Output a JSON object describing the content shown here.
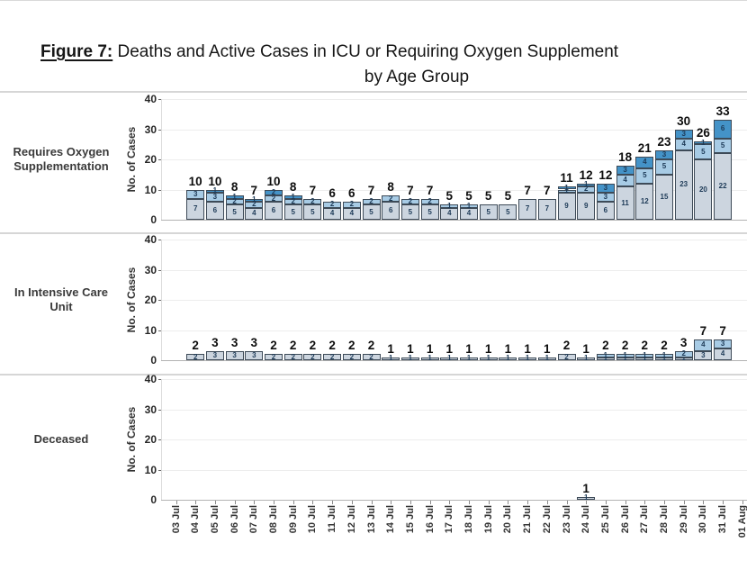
{
  "figure": {
    "label": "Figure 7:",
    "title_rest": " Deaths and Active Cases in ICU or Requiring Oxygen Supplement",
    "subtitle": "by Age Group"
  },
  "chart_data": {
    "type": "bar",
    "stacked": true,
    "title": "Figure 7: Deaths and Active Cases in ICU or Requiring Oxygen Supplement by Age Group",
    "ylabel": "No. of Cases",
    "ylim": [
      0,
      40
    ],
    "yticks": [
      0,
      10,
      20,
      30,
      40
    ],
    "grid": true,
    "legend": "none visible (clipped)",
    "segment_order_note": "segments stacked bottom-to-top; values per segment: [base_gray, mid_lightblue, top_darkblue]",
    "colors": {
      "base_gray": "#ccd5df",
      "mid_lightblue": "#a7cbe5",
      "top_darkblue": "#4493c8",
      "segment_border": "#3d4a57"
    },
    "x_labels": [
      "03 Jul",
      "04 Jul",
      "05 Jul",
      "06 Jul",
      "07 Jul",
      "08 Jul",
      "09 Jul",
      "10 Jul",
      "11 Jul",
      "12 Jul",
      "13 Jul",
      "14 Jul",
      "15 Jul",
      "16 Jul",
      "17 Jul",
      "18 Jul",
      "19 Jul",
      "20 Jul",
      "21 Jul",
      "22 Jul",
      "23 Jul",
      "24 Jul",
      "25 Jul",
      "26 Jul",
      "27 Jul",
      "28 Jul",
      "29 Jul",
      "30 Jul",
      "31 Jul",
      "01 Aug"
    ],
    "panels": [
      {
        "label": "Requires Oxygen Supplementation",
        "label_lines": [
          "Requires Oxygen",
          "Supplementation"
        ],
        "bars": [
          {
            "date": "04 Jul",
            "segments": [
              7,
              3,
              0
            ],
            "total": 10
          },
          {
            "date": "05 Jul",
            "segments": [
              6,
              3,
              1
            ],
            "total": 10
          },
          {
            "date": "06 Jul",
            "segments": [
              5,
              2,
              1
            ],
            "total": 8
          },
          {
            "date": "07 Jul",
            "segments": [
              4,
              2,
              1
            ],
            "total": 7
          },
          {
            "date": "08 Jul",
            "segments": [
              6,
              2,
              2
            ],
            "total": 10
          },
          {
            "date": "09 Jul",
            "segments": [
              5,
              2,
              1
            ],
            "total": 8
          },
          {
            "date": "10 Jul",
            "segments": [
              5,
              2,
              0
            ],
            "total": 7
          },
          {
            "date": "11 Jul",
            "segments": [
              4,
              2,
              0
            ],
            "total": 6
          },
          {
            "date": "12 Jul",
            "segments": [
              4,
              2,
              0
            ],
            "total": 6
          },
          {
            "date": "13 Jul",
            "segments": [
              5,
              2,
              0
            ],
            "total": 7
          },
          {
            "date": "14 Jul",
            "segments": [
              6,
              2,
              0
            ],
            "total": 8
          },
          {
            "date": "15 Jul",
            "segments": [
              5,
              2,
              0
            ],
            "total": 7
          },
          {
            "date": "16 Jul",
            "segments": [
              5,
              2,
              0
            ],
            "total": 7
          },
          {
            "date": "17 Jul",
            "segments": [
              4,
              1,
              0
            ],
            "total": 5
          },
          {
            "date": "18 Jul",
            "segments": [
              4,
              1,
              0
            ],
            "total": 5
          },
          {
            "date": "19 Jul",
            "segments": [
              5,
              0,
              0
            ],
            "total": 5
          },
          {
            "date": "20 Jul",
            "segments": [
              5,
              0,
              0
            ],
            "total": 5
          },
          {
            "date": "21 Jul",
            "segments": [
              7,
              0,
              0
            ],
            "total": 7
          },
          {
            "date": "22 Jul",
            "segments": [
              7,
              0,
              0
            ],
            "total": 7
          },
          {
            "date": "23 Jul",
            "segments": [
              9,
              1,
              1
            ],
            "total": 11
          },
          {
            "date": "24 Jul",
            "segments": [
              9,
              2,
              1
            ],
            "total": 12
          },
          {
            "date": "25 Jul",
            "segments": [
              6,
              3,
              3
            ],
            "total": 12
          },
          {
            "date": "26 Jul",
            "segments": [
              11,
              4,
              3
            ],
            "total": 18
          },
          {
            "date": "27 Jul",
            "segments": [
              12,
              5,
              4
            ],
            "total": 21
          },
          {
            "date": "28 Jul",
            "segments": [
              15,
              5,
              3
            ],
            "total": 23
          },
          {
            "date": "29 Jul",
            "segments": [
              23,
              4,
              3
            ],
            "total": 30
          },
          {
            "date": "30 Jul",
            "segments": [
              20,
              5,
              1
            ],
            "total": 26
          },
          {
            "date": "31 Jul",
            "segments": [
              22,
              5,
              6
            ],
            "total": 33
          }
        ]
      },
      {
        "label": "In Intensive Care Unit",
        "label_lines": [
          "In Intensive Care",
          "Unit"
        ],
        "bars": [
          {
            "date": "04 Jul",
            "segments": [
              2,
              0,
              0
            ],
            "total": 2
          },
          {
            "date": "05 Jul",
            "segments": [
              3,
              0,
              0
            ],
            "total": 3
          },
          {
            "date": "06 Jul",
            "segments": [
              3,
              0,
              0
            ],
            "total": 3
          },
          {
            "date": "07 Jul",
            "segments": [
              3,
              0,
              0
            ],
            "total": 3
          },
          {
            "date": "08 Jul",
            "segments": [
              2,
              0,
              0
            ],
            "total": 2
          },
          {
            "date": "09 Jul",
            "segments": [
              2,
              0,
              0
            ],
            "total": 2
          },
          {
            "date": "10 Jul",
            "segments": [
              2,
              0,
              0
            ],
            "total": 2
          },
          {
            "date": "11 Jul",
            "segments": [
              2,
              0,
              0
            ],
            "total": 2
          },
          {
            "date": "12 Jul",
            "segments": [
              2,
              0,
              0
            ],
            "total": 2
          },
          {
            "date": "13 Jul",
            "segments": [
              2,
              0,
              0
            ],
            "total": 2
          },
          {
            "date": "14 Jul",
            "segments": [
              1,
              0,
              0
            ],
            "total": 1
          },
          {
            "date": "15 Jul",
            "segments": [
              1,
              0,
              0
            ],
            "total": 1
          },
          {
            "date": "16 Jul",
            "segments": [
              1,
              0,
              0
            ],
            "total": 1
          },
          {
            "date": "17 Jul",
            "segments": [
              1,
              0,
              0
            ],
            "total": 1
          },
          {
            "date": "18 Jul",
            "segments": [
              1,
              0,
              0
            ],
            "total": 1
          },
          {
            "date": "19 Jul",
            "segments": [
              1,
              0,
              0
            ],
            "total": 1
          },
          {
            "date": "20 Jul",
            "segments": [
              1,
              0,
              0
            ],
            "total": 1
          },
          {
            "date": "21 Jul",
            "segments": [
              1,
              0,
              0
            ],
            "total": 1
          },
          {
            "date": "22 Jul",
            "segments": [
              1,
              0,
              0
            ],
            "total": 1
          },
          {
            "date": "23 Jul",
            "segments": [
              2,
              0,
              0
            ],
            "total": 2
          },
          {
            "date": "24 Jul",
            "segments": [
              1,
              0,
              0
            ],
            "total": 1
          },
          {
            "date": "25 Jul",
            "segments": [
              1,
              1,
              0
            ],
            "total": 2
          },
          {
            "date": "26 Jul",
            "segments": [
              1,
              1,
              0
            ],
            "total": 2
          },
          {
            "date": "27 Jul",
            "segments": [
              1,
              1,
              0
            ],
            "total": 2
          },
          {
            "date": "28 Jul",
            "segments": [
              1,
              1,
              0
            ],
            "total": 2
          },
          {
            "date": "29 Jul",
            "segments": [
              1,
              2,
              0
            ],
            "total": 3
          },
          {
            "date": "30 Jul",
            "segments": [
              3,
              4,
              0
            ],
            "total": 7
          },
          {
            "date": "31 Jul",
            "segments": [
              4,
              3,
              0
            ],
            "total": 7
          }
        ]
      },
      {
        "label": "Deceased",
        "label_lines": [
          "Deceased"
        ],
        "bars": [
          {
            "date": "24 Jul",
            "segments": [
              1,
              0,
              0
            ],
            "total": 1
          }
        ]
      }
    ]
  }
}
